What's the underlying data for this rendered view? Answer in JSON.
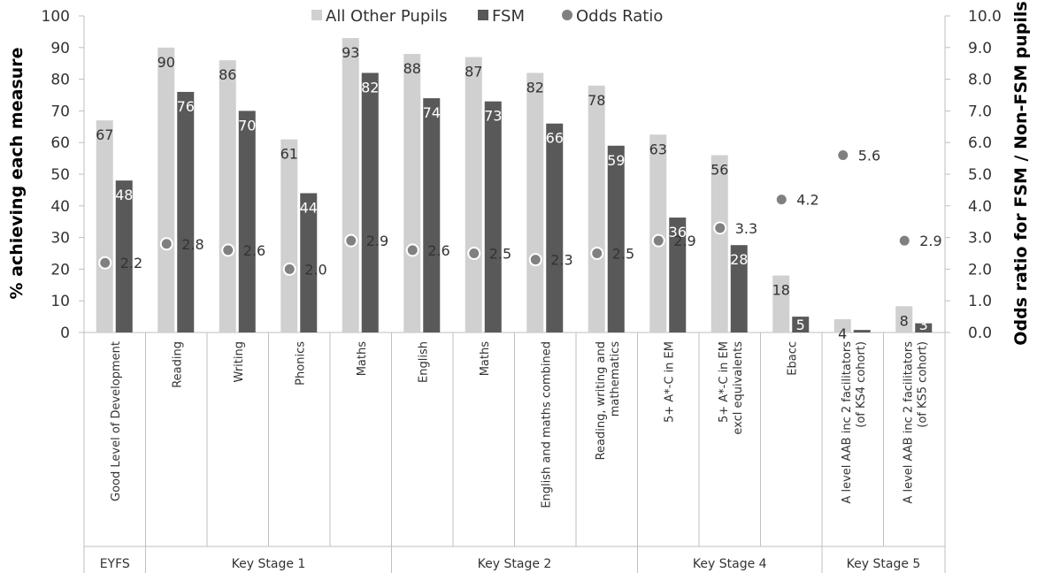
{
  "chart_data": {
    "type": "bar",
    "ylabel": "% achieving each measure",
    "y2label": "Odds ratio for FSM / Non-FSM pupils",
    "ylim": [
      0,
      100
    ],
    "y2lim": [
      0,
      10
    ],
    "yticks": [
      "0",
      "10",
      "20",
      "30",
      "40",
      "50",
      "60",
      "70",
      "80",
      "90",
      "100"
    ],
    "y2ticks": [
      "0.0",
      "1.0",
      "2.0",
      "3.0",
      "4.0",
      "5.0",
      "6.0",
      "7.0",
      "8.0",
      "9.0",
      "10.0"
    ],
    "legend_position": "top",
    "categories": [
      {
        "lines": [
          "Good Level of Development"
        ]
      },
      {
        "lines": [
          "Reading"
        ]
      },
      {
        "lines": [
          "Writing"
        ]
      },
      {
        "lines": [
          "Phonics"
        ]
      },
      {
        "lines": [
          "Maths"
        ]
      },
      {
        "lines": [
          "English"
        ]
      },
      {
        "lines": [
          "Maths"
        ]
      },
      {
        "lines": [
          "English and maths combined"
        ]
      },
      {
        "lines": [
          "Reading, writing and",
          "mathematics"
        ]
      },
      {
        "lines": [
          "5+ A*-C in EM"
        ]
      },
      {
        "lines": [
          "5+ A*-C in EM",
          "excl equivalents"
        ]
      },
      {
        "lines": [
          "Ebacc"
        ]
      },
      {
        "lines": [
          "A level AAB inc 2 facilitators",
          "(of KS4 cohort)"
        ]
      },
      {
        "lines": [
          "A level AAB inc 2 facilitators",
          "(of KS5 cohort)"
        ]
      }
    ],
    "groups": [
      {
        "label": "EYFS",
        "start": 0,
        "end": 0
      },
      {
        "label": "Key Stage 1",
        "start": 1,
        "end": 4
      },
      {
        "label": "Key Stage 2",
        "start": 5,
        "end": 8
      },
      {
        "label": "Key Stage 4",
        "start": 9,
        "end": 11
      },
      {
        "label": "Key Stage 5",
        "start": 12,
        "end": 13
      }
    ],
    "series": [
      {
        "name": "All Other Pupils",
        "kind": "bar",
        "color": "#d0d0d0",
        "values": [
          67,
          90,
          86,
          61,
          93,
          88,
          87,
          82,
          78,
          62.5,
          56,
          18,
          4.2,
          8.3
        ],
        "labels": [
          "67",
          "90",
          "86",
          "61",
          "93",
          "88",
          "87",
          "82",
          "78",
          "63",
          "56",
          "18",
          "4",
          "8"
        ]
      },
      {
        "name": "FSM",
        "kind": "bar",
        "color": "#595959",
        "values": [
          48,
          76,
          70,
          44,
          82,
          74,
          73,
          66,
          59,
          36.3,
          27.6,
          5,
          0.8,
          2.9
        ],
        "labels": [
          "48",
          "76",
          "70",
          "44",
          "82",
          "74",
          "73",
          "66",
          "59",
          "36",
          "28",
          "5",
          "",
          "3"
        ]
      },
      {
        "name": "Odds Ratio",
        "kind": "point",
        "axis": "secondary",
        "color": "#808080",
        "values": [
          2.2,
          2.8,
          2.6,
          2.0,
          2.9,
          2.6,
          2.5,
          2.3,
          2.5,
          2.9,
          3.3,
          4.2,
          5.6,
          2.9
        ],
        "labels": [
          "2.2",
          "2.8",
          "2.6",
          "2.0",
          "2.9",
          "2.6",
          "2.5",
          "2.3",
          "2.5",
          "2.9",
          "3.3",
          "4.2",
          "5.6",
          "2.9"
        ]
      }
    ]
  }
}
